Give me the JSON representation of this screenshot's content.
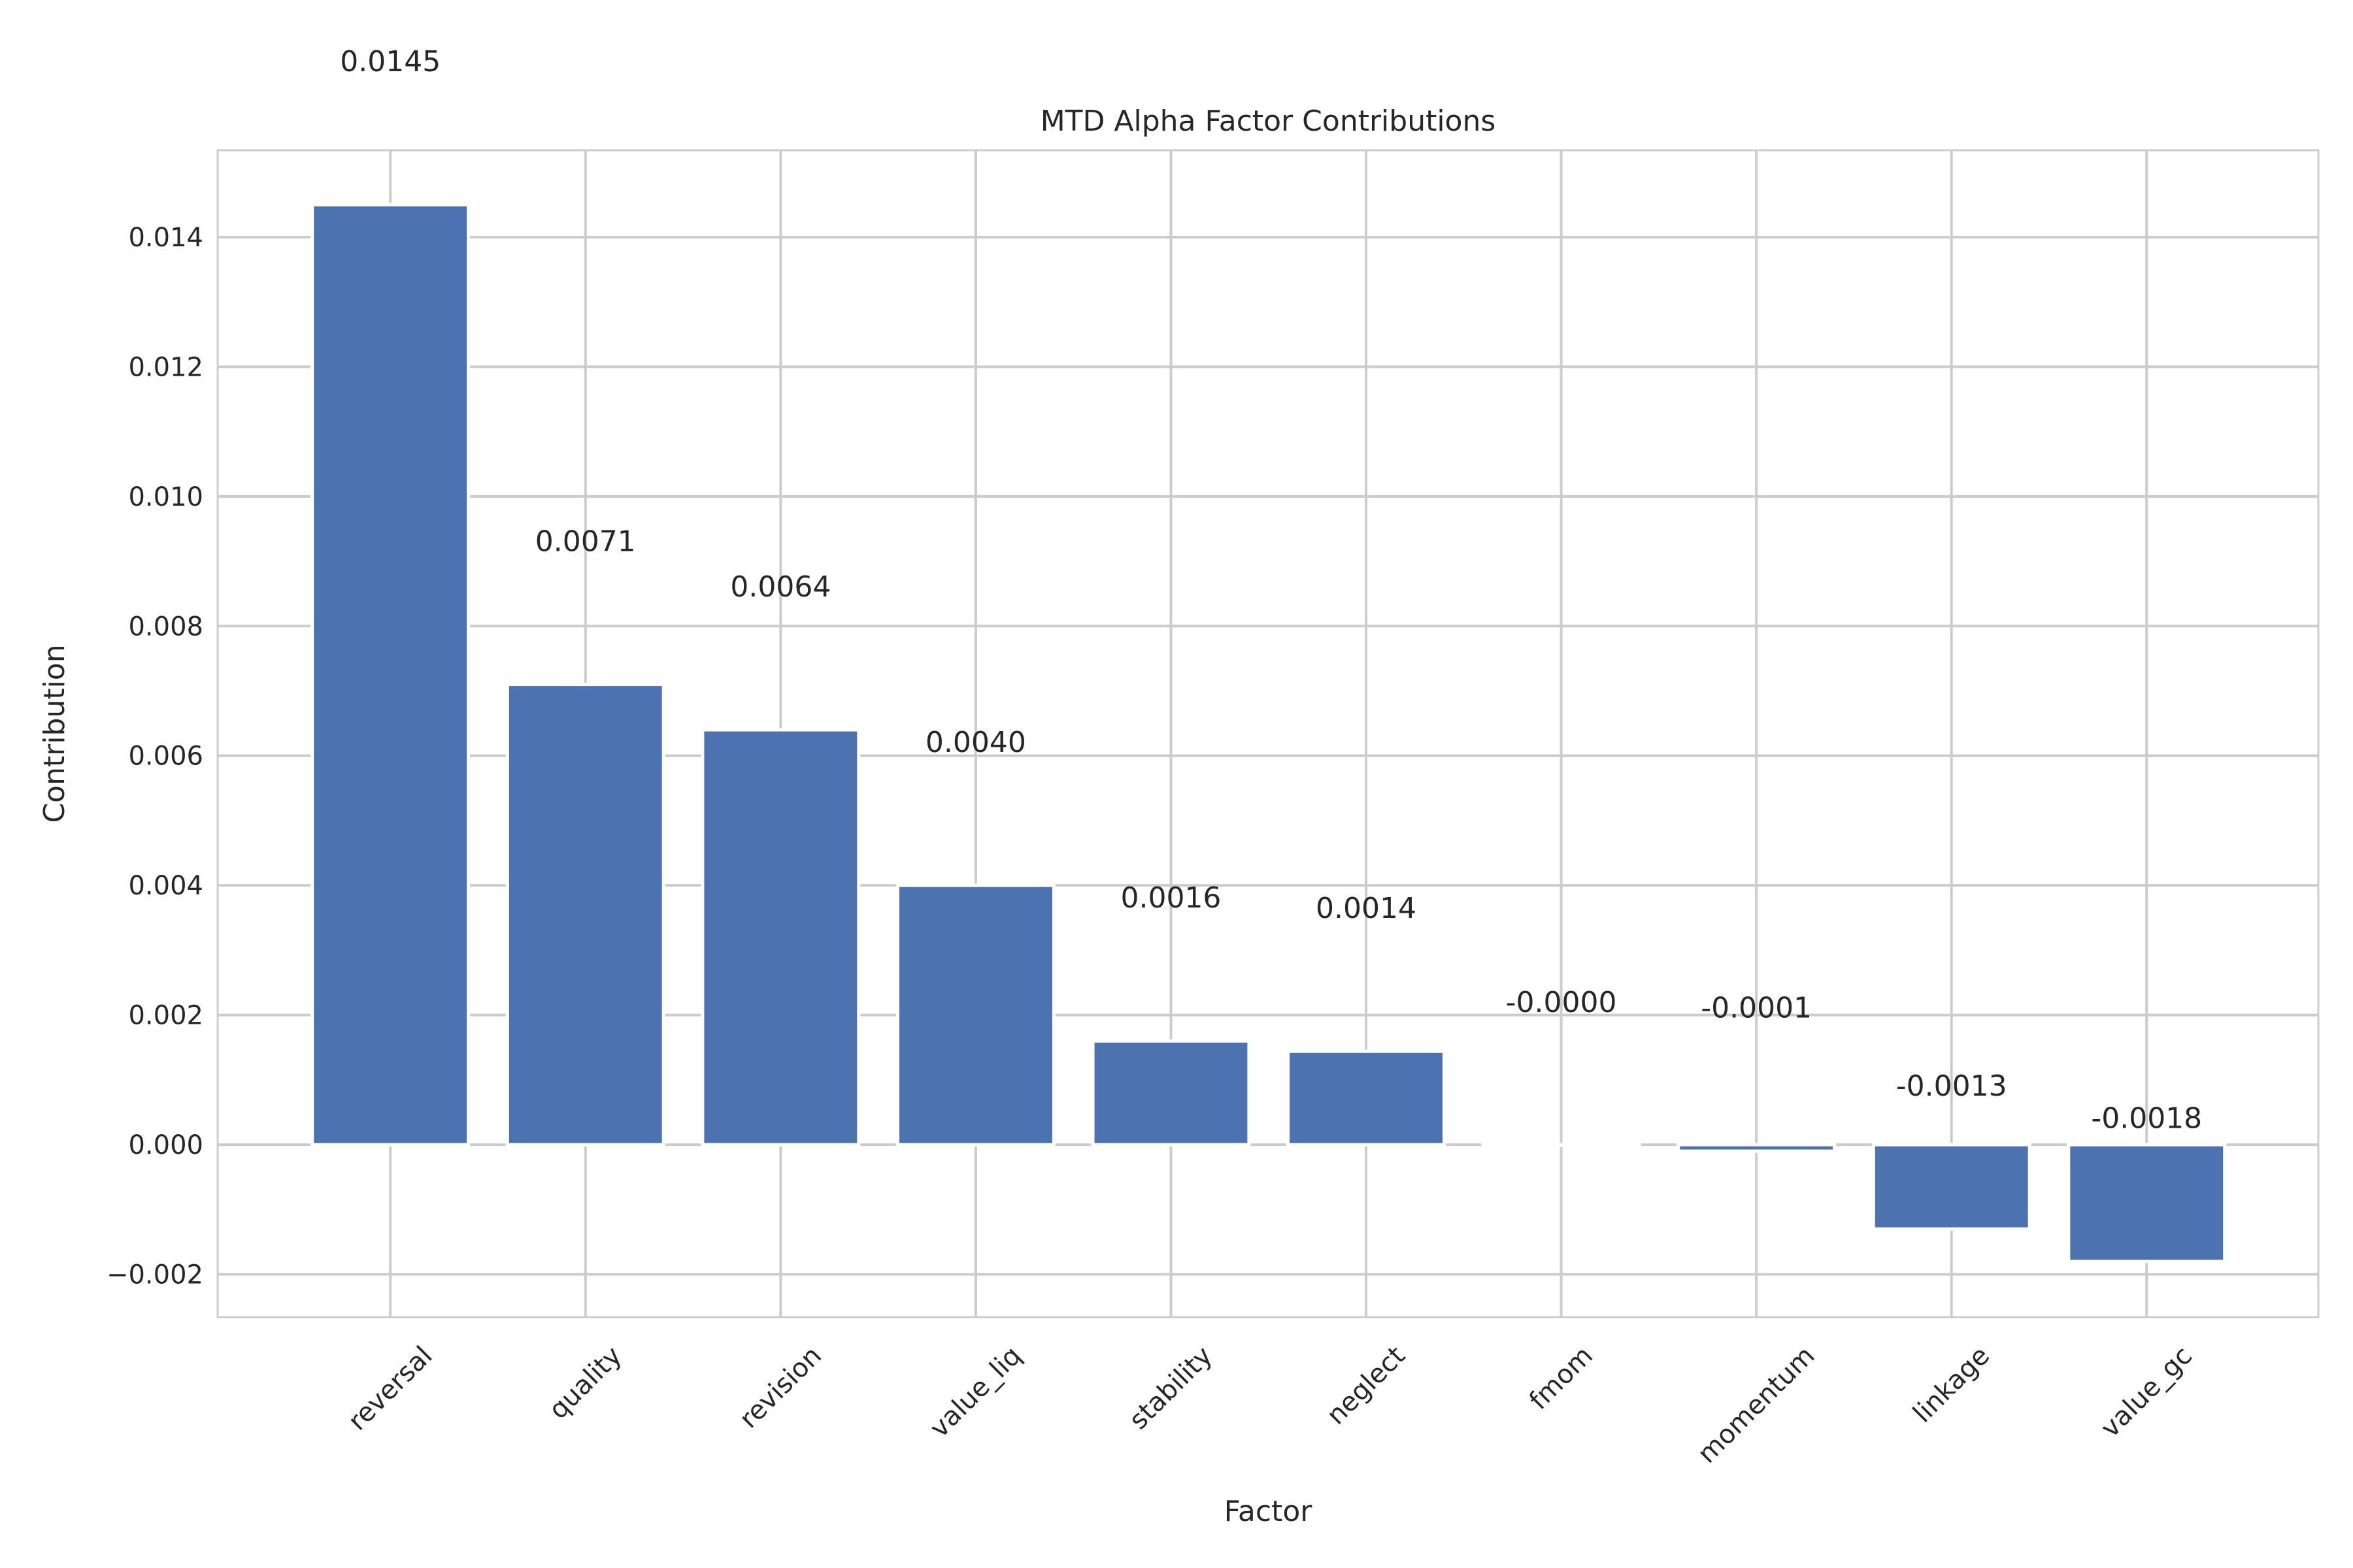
{
  "chart_data": {
    "type": "bar",
    "title": "MTD Alpha Factor Contributions",
    "xlabel": "Factor",
    "ylabel": "Contribution",
    "categories": [
      "reversal",
      "quality",
      "revision",
      "value_liq",
      "stability",
      "neglect",
      "fmom",
      "momentum",
      "linkage",
      "value_gc"
    ],
    "values": [
      0.0145,
      0.0071,
      0.0064,
      0.004,
      0.0016,
      0.00144,
      -1e-05,
      -0.0001,
      -0.0013,
      -0.0018
    ],
    "data_labels": [
      "0.0145",
      "0.0071",
      "0.0064",
      "0.0040",
      "0.0016",
      "0.0014",
      "-0.0000",
      "-0.0001",
      "-0.0013",
      "-0.0018"
    ],
    "yticks": [
      -0.002,
      0.0,
      0.002,
      0.004,
      0.006,
      0.008,
      0.01,
      0.012,
      0.014
    ],
    "ytick_labels": [
      "−0.002",
      "0.000",
      "0.002",
      "0.004",
      "0.006",
      "0.008",
      "0.010",
      "0.012",
      "0.014"
    ],
    "ylim": [
      -0.00266,
      0.01534
    ],
    "grid": true,
    "bar_color": "#4c72b0",
    "grid_color": "#cccccc"
  }
}
